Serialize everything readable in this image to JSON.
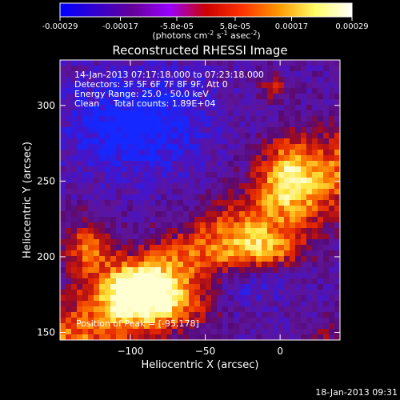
{
  "colorbar": {
    "ticks": [
      "-0.00029",
      "-0.00017",
      "-5.8e-05",
      "5.8e-05",
      "0.00017",
      "0.00029"
    ],
    "tick_values": [
      -0.00029,
      -0.00017,
      -5.8e-05,
      5.8e-05,
      0.00017,
      0.00029
    ],
    "range": [
      -0.00029,
      0.00029
    ],
    "units_base": "(photons cm",
    "units_exp1": "-2",
    "units_mid": " s",
    "units_exp2": "-1",
    "units_tail": " asec",
    "units_exp3": "-2",
    "units_close": ")",
    "colors": [
      "#0000ff",
      "#3300cc",
      "#660099",
      "#9900ff",
      "#cc0000",
      "#ff3300",
      "#ff9900",
      "#ffff66",
      "#ffffff"
    ]
  },
  "chart_data": {
    "type": "heatmap",
    "title": "Reconstructed RHESSI Image",
    "xlabel": "Heliocentric X (arcsec)",
    "ylabel": "Heliocentric Y (arcsec)",
    "xlim": [
      -147,
      40
    ],
    "ylim": [
      145,
      330
    ],
    "xticks": [
      -100,
      -50,
      0
    ],
    "yticks": [
      150,
      200,
      250,
      300
    ],
    "xtick_labels": [
      "−100",
      "−50",
      "0"
    ],
    "ytick_labels": [
      "150",
      "200",
      "250",
      "300"
    ],
    "info_lines": [
      "14-Jan-2013 07:17:18.000 to 07:23:18.000",
      "Detectors: 3F 5F 6F 7F 8F 9F, Att 0",
      "Energy Range: 25.0 - 50.0 keV",
      "Clean     Total counts: 1.89E+04"
    ],
    "peak_label": "Position of Peak = [-95,178]",
    "peak": [
      -95,
      178
    ]
  },
  "footer_date": "18-Jan-2013 09:31"
}
